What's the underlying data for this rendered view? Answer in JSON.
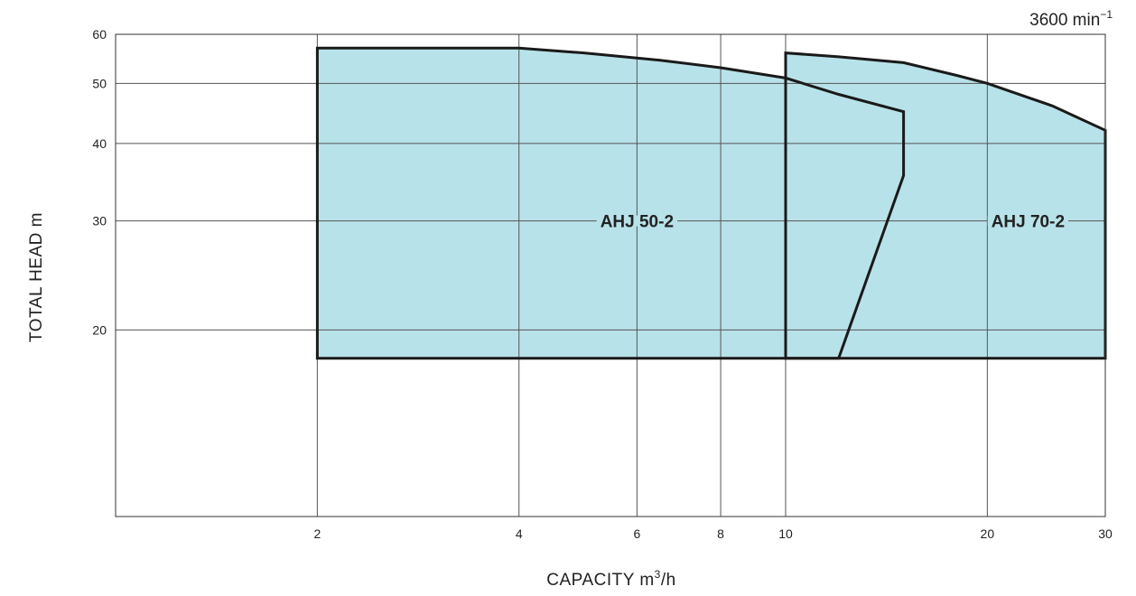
{
  "chart_data": {
    "type": "area",
    "x_scale": "log",
    "y_scale": "log",
    "xlim": [
      1,
      30
    ],
    "ylim": [
      10,
      60
    ],
    "x_ticks": [
      2,
      4,
      6,
      8,
      10,
      20,
      30
    ],
    "y_ticks": [
      20,
      30,
      40,
      50,
      60
    ],
    "xlabel_main": "CAPACITY  m",
    "xlabel_sup": "3",
    "xlabel_tail": "/h",
    "ylabel": "TOTAL HEAD  m",
    "speed_main": "3600 min",
    "speed_sup": "−1",
    "grid": true,
    "fill_color": "#b8e2e9",
    "stroke_color": "#1a1a1a",
    "series": [
      {
        "name": "AHJ 50-2",
        "label_at": [
          6,
          30
        ],
        "outline": [
          [
            2,
            18
          ],
          [
            2,
            57
          ],
          [
            4,
            57
          ],
          [
            5,
            56
          ],
          [
            6.5,
            54.5
          ],
          [
            8,
            53
          ],
          [
            10,
            51
          ],
          [
            12,
            48
          ],
          [
            15,
            45
          ],
          [
            15,
            35.5
          ],
          [
            12,
            18
          ]
        ]
      },
      {
        "name": "AHJ 70-2",
        "label_at": [
          23,
          30
        ],
        "outline": [
          [
            10,
            18
          ],
          [
            10,
            56
          ],
          [
            12,
            55.2
          ],
          [
            15,
            54
          ],
          [
            18,
            51.5
          ],
          [
            20,
            50
          ],
          [
            25,
            46
          ],
          [
            30,
            42
          ],
          [
            30,
            18
          ]
        ]
      }
    ]
  }
}
